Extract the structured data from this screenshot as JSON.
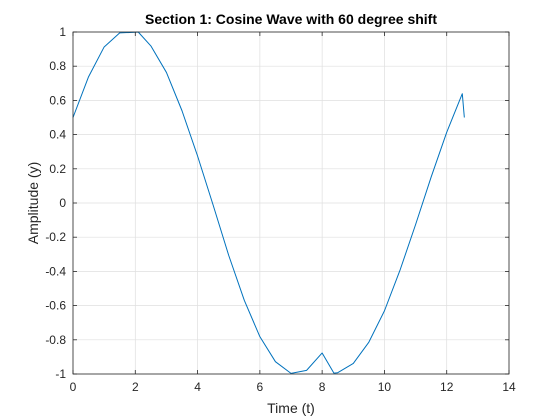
{
  "chart_data": {
    "type": "line",
    "title": "Section 1: Cosine Wave with 60 degree shift",
    "xlabel": "Time (t)",
    "ylabel": "Amplitude (y)",
    "xlim": [
      0,
      14
    ],
    "ylim": [
      -1,
      1
    ],
    "xticks": [
      0,
      2,
      4,
      6,
      8,
      10,
      12,
      14
    ],
    "xtick_labels": [
      "0",
      "2",
      "4",
      "6",
      "8",
      "10",
      "12",
      "14"
    ],
    "yticks": [
      -1,
      -0.8,
      -0.6,
      -0.4,
      -0.2,
      0,
      0.2,
      0.4,
      0.6,
      0.8,
      1
    ],
    "ytick_labels": [
      "-1",
      "-0.8",
      "-0.6",
      "-0.4",
      "-0.2",
      "0",
      "0.2",
      "0.4",
      "0.6",
      "0.8",
      "1"
    ],
    "grid": true,
    "series": [
      {
        "color": "#0072bd",
        "x": [
          0,
          0.5,
          1.0,
          1.5,
          2.0,
          2.0944,
          2.5,
          3.0,
          3.5,
          4.0,
          4.5,
          5.0,
          5.5,
          6.0,
          6.5,
          7.0,
          7.5,
          8.0,
          8.3776,
          8.5,
          9.0,
          9.5,
          10.0,
          10.5,
          11.0,
          11.5,
          12.0,
          12.5,
          12.566
        ],
        "y": [
          0.5,
          0.7385,
          0.9126,
          0.9948,
          0.9986,
          1.0,
          0.9187,
          0.7635,
          0.5395,
          0.2748,
          -0.0122,
          -0.3064,
          -0.5691,
          -0.7817,
          -0.928,
          -0.9963,
          -0.9787,
          -0.877,
          -0.995,
          -0.9925,
          -0.9385,
          -0.8138,
          -0.6309,
          -0.3932,
          -0.1263,
          0.1517,
          0.4134,
          0.639,
          0.5
        ]
      }
    ]
  }
}
